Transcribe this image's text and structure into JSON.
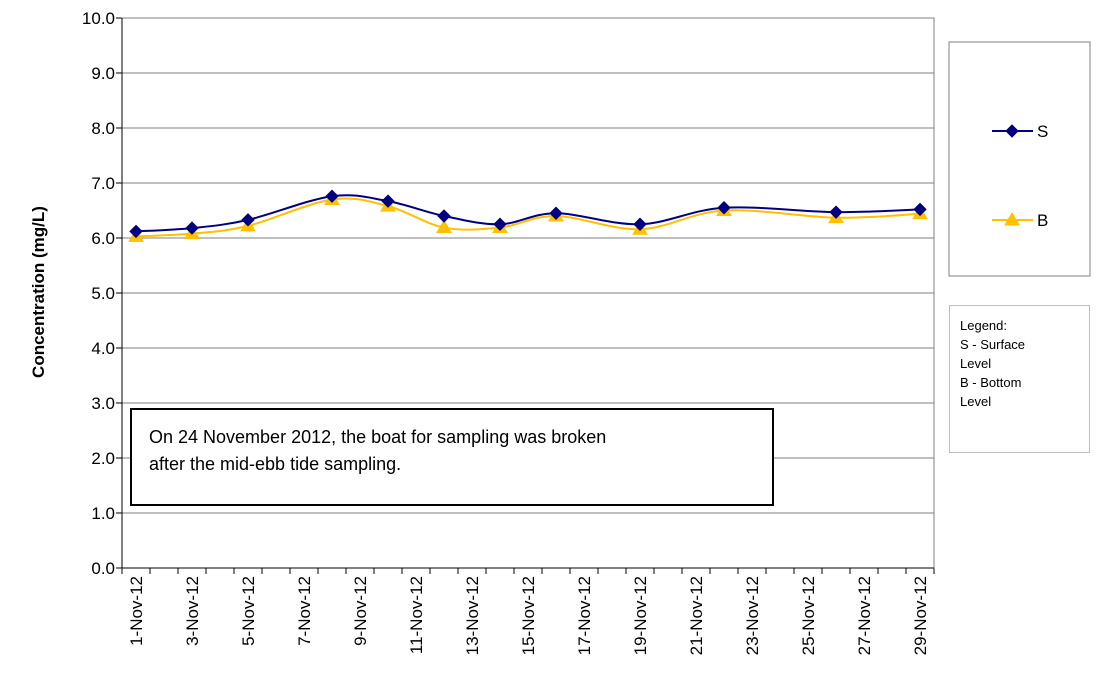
{
  "chart_data": {
    "type": "line",
    "title": "",
    "xlabel": "",
    "ylabel": "Concentration (mg/L)",
    "ylim": [
      0.0,
      10.0
    ],
    "yticks": [
      "0.0",
      "1.0",
      "2.0",
      "3.0",
      "4.0",
      "5.0",
      "6.0",
      "7.0",
      "8.0",
      "9.0",
      "10.0"
    ],
    "x_range": [
      "2012-11-01",
      "2012-11-30"
    ],
    "xtick_labels": [
      "1-Nov-12",
      "3-Nov-12",
      "5-Nov-12",
      "7-Nov-12",
      "9-Nov-12",
      "11-Nov-12",
      "13-Nov-12",
      "15-Nov-12",
      "17-Nov-12",
      "19-Nov-12",
      "21-Nov-12",
      "23-Nov-12",
      "25-Nov-12",
      "27-Nov-12",
      "29-Nov-12"
    ],
    "grid": true,
    "legend_position": "right",
    "series": [
      {
        "name": "S",
        "color": "#000080",
        "marker": "diamond",
        "points": [
          {
            "x": "2012-11-01",
            "y": 6.12
          },
          {
            "x": "2012-11-03",
            "y": 6.18
          },
          {
            "x": "2012-11-05",
            "y": 6.33
          },
          {
            "x": "2012-11-08",
            "y": 6.76
          },
          {
            "x": "2012-11-10",
            "y": 6.67
          },
          {
            "x": "2012-11-12",
            "y": 6.4
          },
          {
            "x": "2012-11-14",
            "y": 6.25
          },
          {
            "x": "2012-11-16",
            "y": 6.45
          },
          {
            "x": "2012-11-19",
            "y": 6.25
          },
          {
            "x": "2012-11-22",
            "y": 6.55
          },
          {
            "x": "2012-11-26",
            "y": 6.47
          },
          {
            "x": "2012-11-29",
            "y": 6.52
          }
        ]
      },
      {
        "name": "B",
        "color": "#FFC000",
        "marker": "triangle",
        "points": [
          {
            "x": "2012-11-01",
            "y": 6.03
          },
          {
            "x": "2012-11-03",
            "y": 6.08
          },
          {
            "x": "2012-11-05",
            "y": 6.22
          },
          {
            "x": "2012-11-08",
            "y": 6.7
          },
          {
            "x": "2012-11-10",
            "y": 6.58
          },
          {
            "x": "2012-11-12",
            "y": 6.19
          },
          {
            "x": "2012-11-14",
            "y": 6.19
          },
          {
            "x": "2012-11-16",
            "y": 6.4
          },
          {
            "x": "2012-11-19",
            "y": 6.16
          },
          {
            "x": "2012-11-22",
            "y": 6.5
          },
          {
            "x": "2012-11-26",
            "y": 6.37
          },
          {
            "x": "2012-11-29",
            "y": 6.44
          }
        ]
      }
    ]
  },
  "annotation": {
    "line1": "On 24 November 2012, the boat for sampling was broken",
    "line2": "after the mid-ebb tide sampling."
  },
  "key": {
    "lines": [
      "Legend:",
      "S - Surface",
      "Level",
      "B - Bottom",
      "Level"
    ]
  }
}
